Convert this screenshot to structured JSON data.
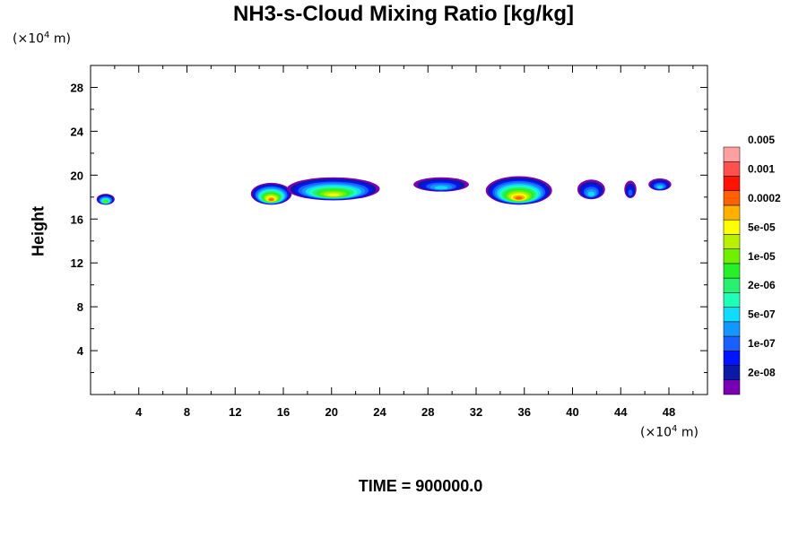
{
  "chart_data": {
    "type": "heatmap",
    "title": "NH3-s-Cloud Mixing Ratio [kg/kg]",
    "ylabel": "Height",
    "xlabel": "",
    "x_unit": "(×10⁴ m)",
    "y_unit": "(×10⁴ m)",
    "footer": "TIME = 900000.0",
    "xlim": [
      0,
      51.2
    ],
    "ylim": [
      0,
      30
    ],
    "x_ticks": [
      4,
      8,
      12,
      16,
      20,
      24,
      28,
      32,
      36,
      40,
      44,
      48
    ],
    "y_ticks": [
      4,
      8,
      12,
      16,
      20,
      24,
      28
    ],
    "colorbar": {
      "colors": [
        "#7a00b4",
        "#0a1aa6",
        "#0014ff",
        "#1a60ff",
        "#1496ff",
        "#10dcff",
        "#20ffb8",
        "#28f070",
        "#28f028",
        "#70f000",
        "#b8f000",
        "#ffff00",
        "#ffb000",
        "#ff6000",
        "#ff1400",
        "#ff5050",
        "#ffa0a0"
      ],
      "labels": [
        "2e-08",
        "1e-07",
        "5e-07",
        "2e-06",
        "1e-05",
        "5e-05",
        "0.0002",
        "0.001",
        "0.005"
      ]
    },
    "cloud_regions": [
      {
        "x_range": [
          0.5,
          2.0
        ],
        "y_range": [
          17.3,
          18.3
        ],
        "peak": "1e-05"
      },
      {
        "x_range": [
          13.3,
          16.7
        ],
        "y_range": [
          17.3,
          19.3
        ],
        "peak": "0.0002"
      },
      {
        "x_range": [
          16.3,
          24.0
        ],
        "y_range": [
          17.7,
          19.8
        ],
        "peak": "5e-05"
      },
      {
        "x_range": [
          26.8,
          31.4
        ],
        "y_range": [
          18.5,
          19.8
        ],
        "peak": "5e-07"
      },
      {
        "x_range": [
          32.8,
          38.3
        ],
        "y_range": [
          17.3,
          19.9
        ],
        "peak": "0.0002"
      },
      {
        "x_range": [
          40.4,
          42.7
        ],
        "y_range": [
          17.8,
          19.6
        ],
        "peak": "5e-07"
      },
      {
        "x_range": [
          44.3,
          45.3
        ],
        "y_range": [
          17.9,
          19.5
        ],
        "peak": "1e-07"
      },
      {
        "x_range": [
          46.3,
          48.2
        ],
        "y_range": [
          18.6,
          19.7
        ],
        "peak": "5e-07"
      }
    ]
  }
}
